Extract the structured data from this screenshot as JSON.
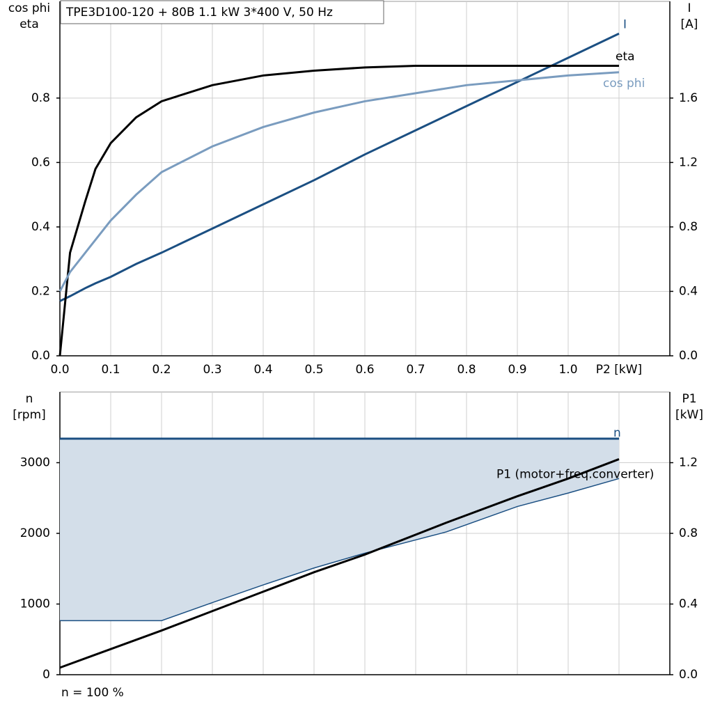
{
  "chart_data": [
    {
      "type": "line",
      "title": "TPE3D100-120 + 80B   1.1 kW   3*400 V, 50 Hz",
      "ylabel": [
        "cos phi",
        "eta"
      ],
      "y2label": [
        "I",
        "[A]"
      ],
      "xlim": [
        0,
        1.2
      ],
      "ylim": [
        0,
        1.1
      ],
      "y2lim": [
        0,
        2.2
      ],
      "xticks": [
        {
          "value": 0,
          "label": "0.0"
        },
        0.1,
        0.2,
        0.3,
        0.4,
        0.5,
        0.6,
        0.7,
        0.8,
        0.9,
        {
          "value": 1,
          "label": "1.0"
        },
        {
          "value": 1.1,
          "label": "P2 [kW]"
        }
      ],
      "yticks": [
        {
          "value": 0,
          "label": "0.0"
        },
        0.2,
        0.4,
        0.6,
        0.8
      ],
      "y2ticks": [
        {
          "value": 0,
          "label": "0.0"
        },
        0.4,
        0.8,
        1.2,
        1.6
      ],
      "grid": true,
      "x": [
        0,
        0.02,
        0.05,
        0.07,
        0.1,
        0.15,
        0.2,
        0.3,
        0.4,
        0.5,
        0.6,
        0.7,
        0.8,
        0.9,
        1.0,
        1.1
      ],
      "series": [
        {
          "name": "I",
          "color": "#1b4f82",
          "axis": "y2",
          "values": [
            0.34,
            0.37,
            0.42,
            0.45,
            0.49,
            0.57,
            0.64,
            0.79,
            0.94,
            1.09,
            1.25,
            1.4,
            1.55,
            1.7,
            1.85,
            2.0
          ]
        },
        {
          "name": "eta",
          "color": "#000000",
          "values": [
            0,
            0.32,
            0.48,
            0.58,
            0.66,
            0.74,
            0.79,
            0.84,
            0.87,
            0.885,
            0.895,
            0.9,
            0.9,
            0.9,
            0.9,
            0.9
          ]
        },
        {
          "name": "cos phi",
          "color": "#7a9cbf",
          "values": [
            0.2,
            0.26,
            0.32,
            0.36,
            0.42,
            0.5,
            0.57,
            0.65,
            0.71,
            0.755,
            0.79,
            0.815,
            0.84,
            0.855,
            0.87,
            0.88
          ]
        }
      ]
    },
    {
      "type": "area",
      "ylabel": [
        "n",
        "[rpm]"
      ],
      "y2label": [
        "P1",
        "[kW]"
      ],
      "note": "n = 100 %",
      "xlim": [
        0,
        1.2
      ],
      "ylim": [
        0,
        4000
      ],
      "y2lim": [
        0,
        1.6
      ],
      "xticks": [
        0,
        0.1,
        0.2,
        0.3,
        0.4,
        0.5,
        0.6,
        0.7,
        0.8,
        0.9,
        1,
        1.1
      ],
      "yticks": [
        0,
        1000,
        2000,
        3000
      ],
      "y2ticks": [
        {
          "value": 0,
          "label": "0.0"
        },
        0.4,
        0.8,
        1.2
      ],
      "grid": true,
      "x": [
        0,
        0.2,
        0.3,
        0.4,
        0.5,
        0.6,
        0.76,
        0.9,
        1.0,
        1.1
      ],
      "series": [
        {
          "name": "n",
          "color": "#1b4f82",
          "fill": "#d3dee9",
          "values": [
            3340,
            3340,
            3340,
            3340,
            3340,
            3340,
            3340,
            3340,
            3340,
            3340
          ],
          "lower": [
            765,
            765,
            1020,
            1270,
            1510,
            1720,
            2020,
            2380,
            2570,
            2775
          ]
        },
        {
          "name": "P1 (motor+freq.converter)",
          "color": "#000000",
          "axis": "y2",
          "values": [
            0.04,
            0.25,
            0.36,
            0.47,
            0.58,
            0.68,
            0.86,
            1.01,
            1.11,
            1.22
          ]
        }
      ]
    }
  ]
}
